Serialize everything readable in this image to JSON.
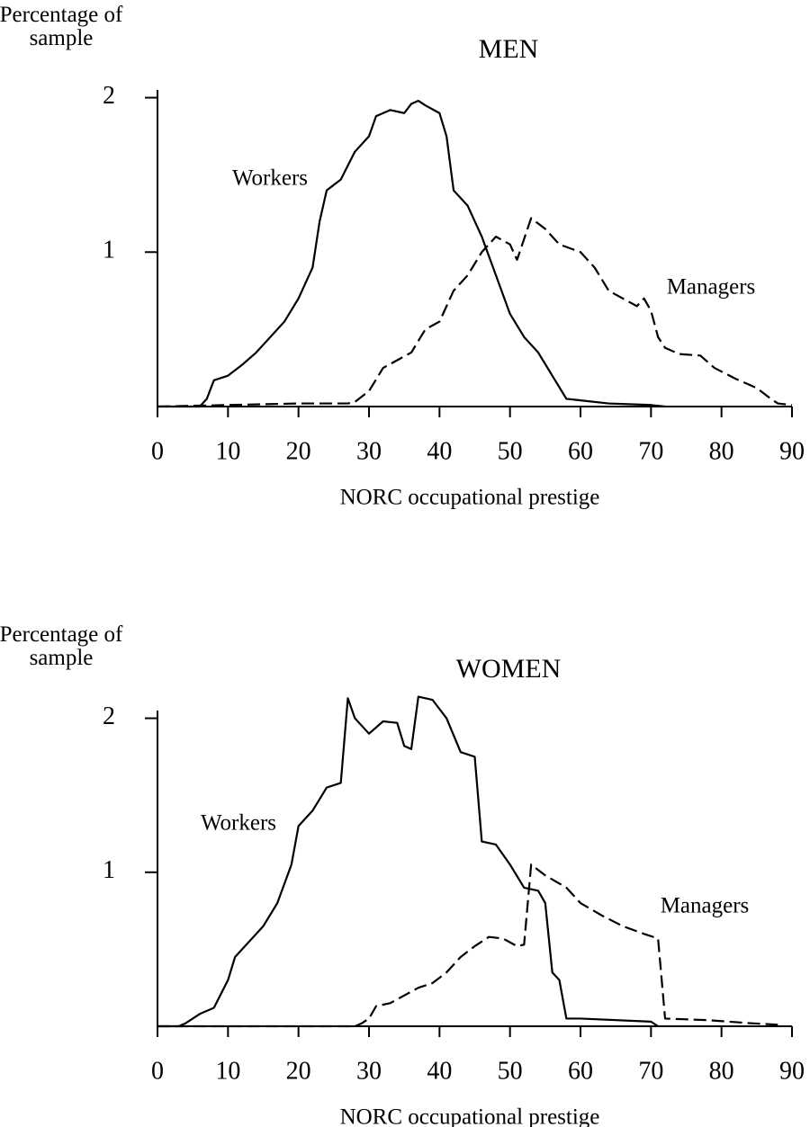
{
  "chart_data": [
    {
      "type": "line",
      "title": "MEN",
      "ylabel": "Percentage of sample",
      "xlabel": "NORC occupational prestige",
      "xlim": [
        0,
        90
      ],
      "xticks": [
        0,
        10,
        20,
        30,
        40,
        50,
        60,
        70,
        80,
        90
      ],
      "ylim": [
        0,
        2.05
      ],
      "yticks": [
        1,
        2
      ],
      "series": [
        {
          "name": "Workers",
          "color": "#000000",
          "line_style": "solid",
          "x": [
            0,
            6,
            7,
            8,
            10,
            12,
            14,
            16,
            18,
            20,
            22,
            23,
            24,
            26,
            28,
            30,
            31,
            33,
            35,
            36,
            37,
            38,
            40,
            41,
            42,
            44,
            46,
            48,
            50,
            52,
            54,
            56,
            58,
            60,
            64,
            70,
            72
          ],
          "values": [
            0,
            0,
            0.05,
            0.17,
            0.2,
            0.27,
            0.35,
            0.45,
            0.55,
            0.7,
            0.9,
            1.2,
            1.4,
            1.47,
            1.65,
            1.75,
            1.88,
            1.92,
            1.9,
            1.96,
            1.98,
            1.95,
            1.9,
            1.75,
            1.4,
            1.3,
            1.1,
            0.85,
            0.6,
            0.45,
            0.35,
            0.2,
            0.05,
            0.04,
            0.02,
            0.01,
            0
          ]
        },
        {
          "name": "Managers",
          "color": "#000000",
          "line_style": "dashed",
          "x": [
            0,
            20,
            27,
            28,
            30,
            32,
            34,
            36,
            38,
            40,
            42,
            44,
            46,
            48,
            50,
            51,
            53,
            55,
            57,
            60,
            62,
            64,
            66,
            68,
            69,
            70,
            71,
            72,
            74,
            77,
            79,
            82,
            85,
            87,
            88,
            90
          ],
          "values": [
            0,
            0.02,
            0.02,
            0.03,
            0.1,
            0.25,
            0.3,
            0.35,
            0.5,
            0.55,
            0.75,
            0.85,
            1.0,
            1.1,
            1.05,
            0.95,
            1.22,
            1.15,
            1.05,
            1.0,
            0.9,
            0.75,
            0.7,
            0.65,
            0.7,
            0.62,
            0.45,
            0.38,
            0.34,
            0.33,
            0.25,
            0.18,
            0.12,
            0.05,
            0.02,
            0.01
          ]
        }
      ]
    },
    {
      "type": "line",
      "title": "WOMEN",
      "ylabel": "Percentage of sample",
      "xlabel": "NORC occupational prestige",
      "xlim": [
        0,
        90
      ],
      "xticks": [
        0,
        10,
        20,
        30,
        40,
        50,
        60,
        70,
        80,
        90
      ],
      "ylim": [
        0,
        2.05
      ],
      "yticks": [
        1,
        2
      ],
      "series": [
        {
          "name": "Workers",
          "color": "#000000",
          "line_style": "solid",
          "x": [
            0,
            3,
            4,
            6,
            8,
            10,
            11,
            13,
            15,
            17,
            19,
            20,
            22,
            24,
            26,
            27,
            28,
            30,
            32,
            34,
            35,
            36,
            37,
            39,
            41,
            43,
            45,
            46,
            48,
            50,
            52,
            54,
            55,
            56,
            57,
            58,
            60,
            70,
            71
          ],
          "values": [
            0,
            0,
            0.02,
            0.08,
            0.12,
            0.3,
            0.45,
            0.55,
            0.65,
            0.8,
            1.05,
            1.3,
            1.4,
            1.55,
            1.58,
            2.13,
            2.0,
            1.9,
            1.98,
            1.97,
            1.82,
            1.8,
            2.14,
            2.12,
            2.0,
            1.78,
            1.75,
            1.2,
            1.18,
            1.05,
            0.9,
            0.88,
            0.8,
            0.35,
            0.3,
            0.05,
            0.05,
            0.03,
            0
          ]
        },
        {
          "name": "Managers",
          "color": "#000000",
          "line_style": "dashed",
          "x": [
            0,
            28,
            29,
            30,
            31,
            33,
            35,
            37,
            39,
            41,
            43,
            45,
            47,
            49,
            51,
            52,
            53,
            55,
            58,
            60,
            63,
            66,
            69,
            71,
            72,
            78,
            84,
            88
          ],
          "values": [
            0,
            0,
            0.02,
            0.05,
            0.13,
            0.15,
            0.2,
            0.25,
            0.28,
            0.35,
            0.45,
            0.52,
            0.58,
            0.57,
            0.52,
            0.53,
            1.05,
            0.98,
            0.9,
            0.8,
            0.72,
            0.65,
            0.6,
            0.57,
            0.05,
            0.04,
            0.02,
            0.01
          ]
        }
      ]
    }
  ]
}
